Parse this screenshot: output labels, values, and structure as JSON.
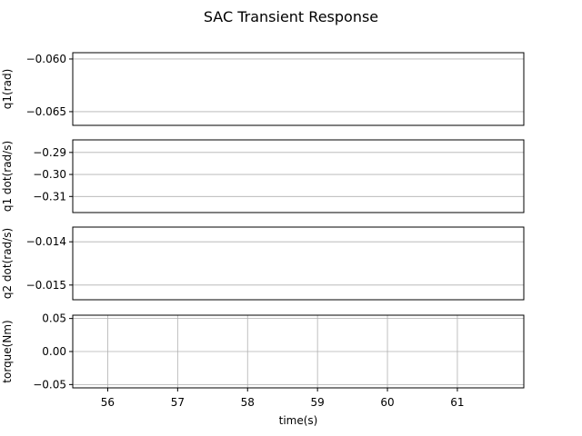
{
  "chart_data": {
    "type": "line",
    "title": "SAC Transient Response",
    "xlabel": "time(s)",
    "xlim": [
      55.5,
      61.95
    ],
    "x_ticks": [
      56,
      57,
      58,
      59,
      60,
      61
    ],
    "x_tick_labels": [
      "56",
      "57",
      "58",
      "59",
      "60",
      "61"
    ],
    "grid": true,
    "colors": {
      "frame": "#000000",
      "grid": "#b0b0b0"
    },
    "subplots": [
      {
        "ylabel": "q1(rad)",
        "ylim": [
          -0.0663,
          -0.0594
        ],
        "y_ticks": [
          -0.06,
          -0.065
        ],
        "y_tick_labels": [
          "−0.060",
          "−0.065"
        ],
        "show_x_tick_labels": false,
        "x_grid": false,
        "series": []
      },
      {
        "ylabel": "q1 dot(rad/s)",
        "ylim": [
          -0.3173,
          -0.2843
        ],
        "y_ticks": [
          -0.29,
          -0.3,
          -0.31
        ],
        "y_tick_labels": [
          "−0.29",
          "−0.30",
          "−0.31"
        ],
        "show_x_tick_labels": false,
        "x_grid": false,
        "series": []
      },
      {
        "ylabel": "q2 dot(rad/s)",
        "ylim": [
          -0.01534,
          -0.01366
        ],
        "y_ticks": [
          -0.014,
          -0.015
        ],
        "y_tick_labels": [
          "−0.014",
          "−0.015"
        ],
        "show_x_tick_labels": false,
        "x_grid": false,
        "series": []
      },
      {
        "ylabel": "torque(Nm)",
        "ylim": [
          -0.055,
          0.055
        ],
        "y_ticks": [
          0.05,
          0.0,
          -0.05
        ],
        "y_tick_labels": [
          "0.05",
          "0.00",
          "−0.05"
        ],
        "show_x_tick_labels": true,
        "x_grid": true,
        "series": []
      }
    ]
  }
}
